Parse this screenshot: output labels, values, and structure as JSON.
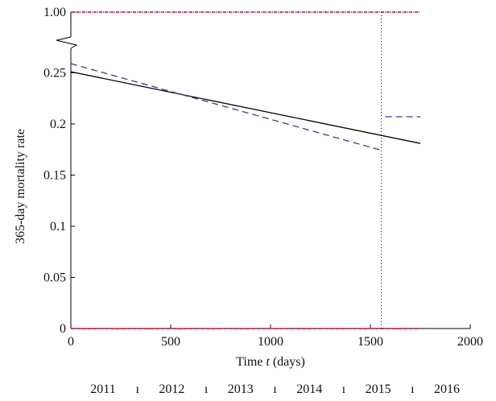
{
  "chart_data": {
    "type": "line",
    "xlabel_prefix": "Time ",
    "xlabel_var": "t",
    "xlabel_suffix": " (days)",
    "ylabel": "365-day mortality rate",
    "xlim": [
      0,
      2000
    ],
    "ylim_main": [
      0,
      0.27
    ],
    "axis_break_top_value": 1.0,
    "x_ticks": [
      "0",
      "500",
      "1000",
      "1500",
      "2000"
    ],
    "y_ticks": [
      {
        "value": 0,
        "label": "0"
      },
      {
        "value": 0.05,
        "label": "0.05"
      },
      {
        "value": 0.1,
        "label": "0.1"
      },
      {
        "value": 0.15,
        "label": "0.15"
      },
      {
        "value": 0.2,
        "label": "0.2"
      },
      {
        "value": 0.25,
        "label": "0.25"
      },
      {
        "value": 1.0,
        "label": "1.00"
      }
    ],
    "year_labels": [
      "2011",
      "2012",
      "2013",
      "2014",
      "2015",
      "2016"
    ],
    "year_separator": "ı",
    "vertical_marker_x": 1555,
    "series": [
      {
        "style": "solid",
        "color": "#000000",
        "points": [
          [
            0,
            0.251
          ],
          [
            1750,
            0.181
          ]
        ]
      },
      {
        "style": "dashed",
        "color": "#3a3aa0",
        "points": [
          [
            0,
            0.259
          ],
          [
            1560,
            0.174
          ]
        ]
      },
      {
        "style": "dashed",
        "color": "#3a3aa0",
        "points": [
          [
            1575,
            0.207
          ],
          [
            1750,
            0.207
          ]
        ]
      }
    ],
    "events_top": {
      "y": 1.0,
      "x_range": [
        0,
        1750
      ],
      "color": "#e0405a"
    },
    "events_bottom": {
      "y": 0,
      "x_range": [
        0,
        1750
      ],
      "color": "#e0405a"
    },
    "grid": false
  }
}
